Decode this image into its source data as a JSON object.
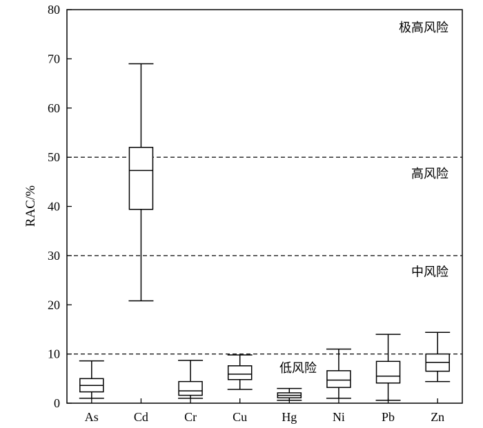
{
  "chart_data": {
    "type": "box",
    "ylabel": "RAC/%",
    "ylim": [
      0,
      80
    ],
    "yticks": [
      0,
      10,
      20,
      30,
      40,
      50,
      60,
      70,
      80
    ],
    "grid": false,
    "categories": [
      "As",
      "Cd",
      "Cr",
      "Cu",
      "Hg",
      "Ni",
      "Pb",
      "Zn"
    ],
    "boxes": [
      {
        "name": "As",
        "min": 1.0,
        "q1": 2.3,
        "median": 3.6,
        "q3": 5.0,
        "max": 8.6
      },
      {
        "name": "Cd",
        "min": 20.8,
        "q1": 39.4,
        "median": 47.3,
        "q3": 52.0,
        "max": 69.0
      },
      {
        "name": "Cr",
        "min": 1.0,
        "q1": 1.6,
        "median": 2.5,
        "q3": 4.4,
        "max": 8.7
      },
      {
        "name": "Cu",
        "min": 2.8,
        "q1": 4.8,
        "median": 5.9,
        "q3": 7.6,
        "max": 9.8
      },
      {
        "name": "Hg",
        "min": 0.6,
        "q1": 1.1,
        "median": 1.6,
        "q3": 2.1,
        "max": 3.0
      },
      {
        "name": "Ni",
        "min": 1.0,
        "q1": 3.2,
        "median": 4.7,
        "q3": 6.6,
        "max": 11.0
      },
      {
        "name": "Pb",
        "min": 0.6,
        "q1": 4.1,
        "median": 5.5,
        "q3": 8.5,
        "max": 14.0
      },
      {
        "name": "Zn",
        "min": 4.4,
        "q1": 6.5,
        "median": 8.3,
        "q3": 10.0,
        "max": 14.4
      }
    ],
    "reference_lines": [
      10,
      30,
      50
    ],
    "zones": [
      {
        "label": "极高风险",
        "y": 76.5
      },
      {
        "label": "高风险",
        "y": 46.8
      },
      {
        "label": "中风险",
        "y": 26.8
      },
      {
        "label": "低风险",
        "y": 7.3
      }
    ]
  }
}
